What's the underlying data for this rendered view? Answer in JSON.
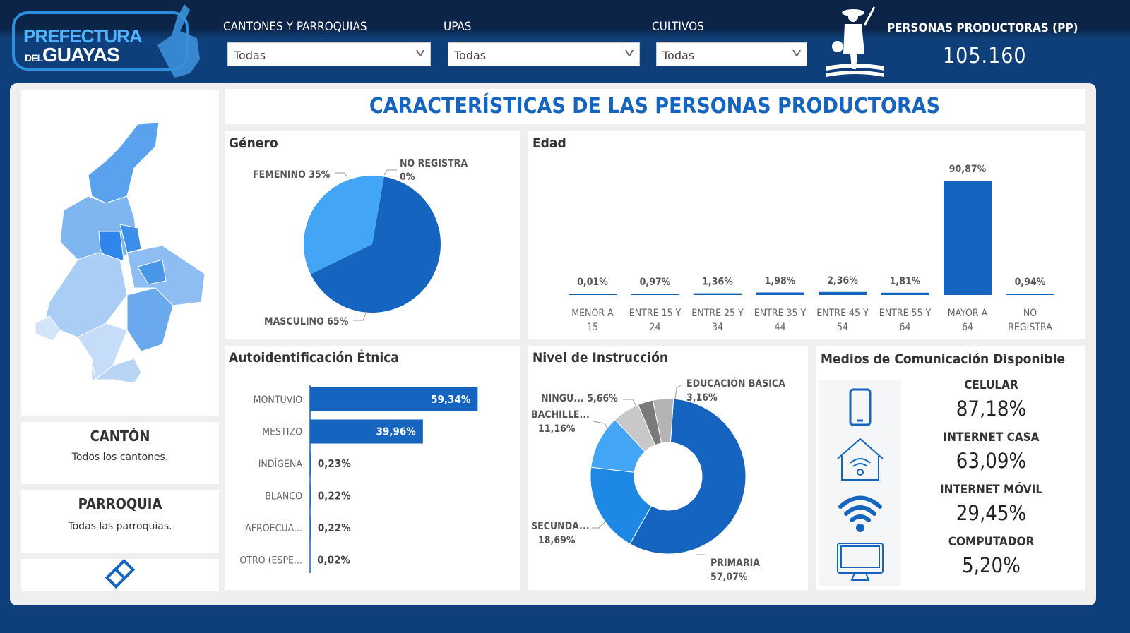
{
  "header": {
    "logo_line1": "PREFECTURA",
    "logo_line2_small": "DEL",
    "logo_line2": "GUAYAS",
    "filters": [
      {
        "label": "CANTONES Y PARROQUIAS",
        "value": "Todas"
      },
      {
        "label": "UPAS",
        "value": "Todas"
      },
      {
        "label": "CULTIVOS",
        "value": "Todas"
      }
    ],
    "kpi_label": "PERSONAS PRODUCTORAS (PP)",
    "kpi_value": "105.160"
  },
  "title": "CARACTERÍSTICAS DE LAS PERSONAS PRODUCTORAS",
  "canton": {
    "label": "CANTÓN",
    "value": "Todos los cantones."
  },
  "parroquia": {
    "label": "PARROQUIA",
    "value": "Todas las parroquias."
  },
  "colors": {
    "dark": "#1565c0",
    "mid": "#1e88e5",
    "light": "#42a5f5"
  },
  "chart_data": [
    {
      "id": "genero",
      "type": "pie",
      "title": "Género",
      "slices": [
        {
          "label": "NO REGISTRA",
          "value": 0,
          "text": "0%",
          "color": "#1565c0"
        },
        {
          "label": "MASCULINO",
          "value": 65,
          "text": "65%",
          "color": "#1565c0"
        },
        {
          "label": "FEMENINO",
          "value": 35,
          "text": "35%",
          "color": "#42a5f5"
        }
      ]
    },
    {
      "id": "edad",
      "type": "bar",
      "title": "Edad",
      "categories": [
        "MENOR A|15",
        "ENTRE 15 Y|24",
        "ENTRE 25 Y|34",
        "ENTRE 35 Y|44",
        "ENTRE 45 Y|54",
        "ENTRE 55 Y|64",
        "MAYOR A|64",
        "NO|REGISTRA"
      ],
      "values": [
        0.01,
        0.97,
        1.36,
        1.98,
        2.36,
        1.81,
        90.87,
        0.94
      ],
      "labels": [
        "0,01%",
        "0,97%",
        "1,36%",
        "1,98%",
        "2,36%",
        "1,81%",
        "90,87%",
        "0,94%"
      ]
    },
    {
      "id": "etnica",
      "type": "bar",
      "orientation": "horizontal",
      "title": "Autoidentificación Étnica",
      "categories": [
        "MONTUVIO",
        "MESTIZO",
        "INDÍGENA",
        "BLANCO",
        "AFROECUA...",
        "OTRO (ESPE..."
      ],
      "values": [
        59.34,
        39.96,
        0.23,
        0.22,
        0.22,
        0.02
      ],
      "labels": [
        "59,34%",
        "39,96%",
        "0,23%",
        "0,22%",
        "0,22%",
        "0,02%"
      ]
    },
    {
      "id": "instruccion",
      "type": "pie",
      "title": "Nivel de Instrucción",
      "slices": [
        {
          "label": "PRIMARIA",
          "value": 57.07,
          "text": "57,07%",
          "color": "#1565c0"
        },
        {
          "label": "SECUNDA...",
          "value": 18.69,
          "text": "18,69%",
          "color": "#1e88e5"
        },
        {
          "label": "BACHILLE...",
          "value": 11.16,
          "text": "11,16%",
          "color": "#42a5f5"
        },
        {
          "label": "NINGU...",
          "value": 5.66,
          "text": "5,66%",
          "color": "#c8c8c8"
        },
        {
          "label": "EDUCACIÓN BÁSICA",
          "value": 3.16,
          "text": "3,16%",
          "color": "#7a7a7a"
        }
      ]
    }
  ],
  "medios": {
    "title": "Medios de Comunicación Disponible",
    "items": [
      {
        "label": "CELULAR",
        "value": "87,18%",
        "icon": "phone-icon"
      },
      {
        "label": "INTERNET CASA",
        "value": "63,09%",
        "icon": "home-wifi-icon"
      },
      {
        "label": "INTERNET MÓVIL",
        "value": "29,45%",
        "icon": "wifi-icon"
      },
      {
        "label": "COMPUTADOR",
        "value": "5,20%",
        "icon": "monitor-icon"
      }
    ]
  }
}
